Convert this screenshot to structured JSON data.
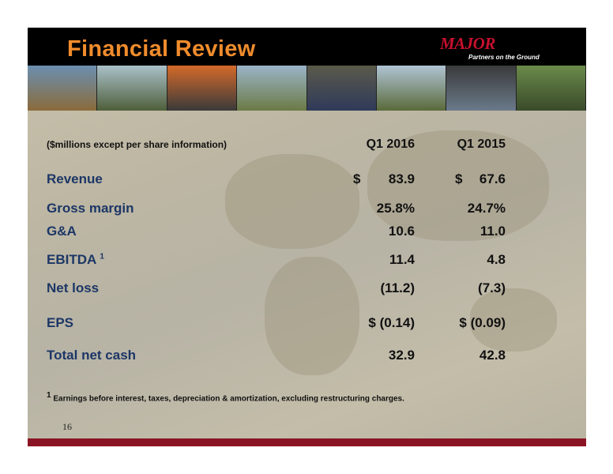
{
  "header": {
    "title": "Financial Review",
    "logo": "MAJOR",
    "tagline": "Partners on the Ground"
  },
  "table": {
    "caption": "($millions except per share information)",
    "columns": [
      "Q1 2016",
      "Q1 2015"
    ],
    "rows": [
      {
        "label": "Revenue",
        "currency": [
          "$",
          "$"
        ],
        "values": [
          "83.9",
          "67.6"
        ]
      },
      {
        "label": "Gross margin",
        "values": [
          "25.8%",
          "24.7%"
        ]
      },
      {
        "label": "G&A",
        "values": [
          "10.6",
          "11.0"
        ]
      },
      {
        "label": "EBITDA",
        "note_marker": "1",
        "values": [
          "11.4",
          "4.8"
        ]
      },
      {
        "label": "Net loss",
        "values": [
          "(11.2)",
          "(7.3)"
        ]
      },
      {
        "label": "EPS",
        "values": [
          "$ (0.14)",
          "$ (0.09)"
        ]
      },
      {
        "label": "Total net cash",
        "values": [
          "32.9",
          "42.8"
        ]
      }
    ]
  },
  "footnote": {
    "marker": "1",
    "text": "Earnings before interest, taxes, depreciation & amortization, excluding restructuring charges."
  },
  "page_number": "16"
}
